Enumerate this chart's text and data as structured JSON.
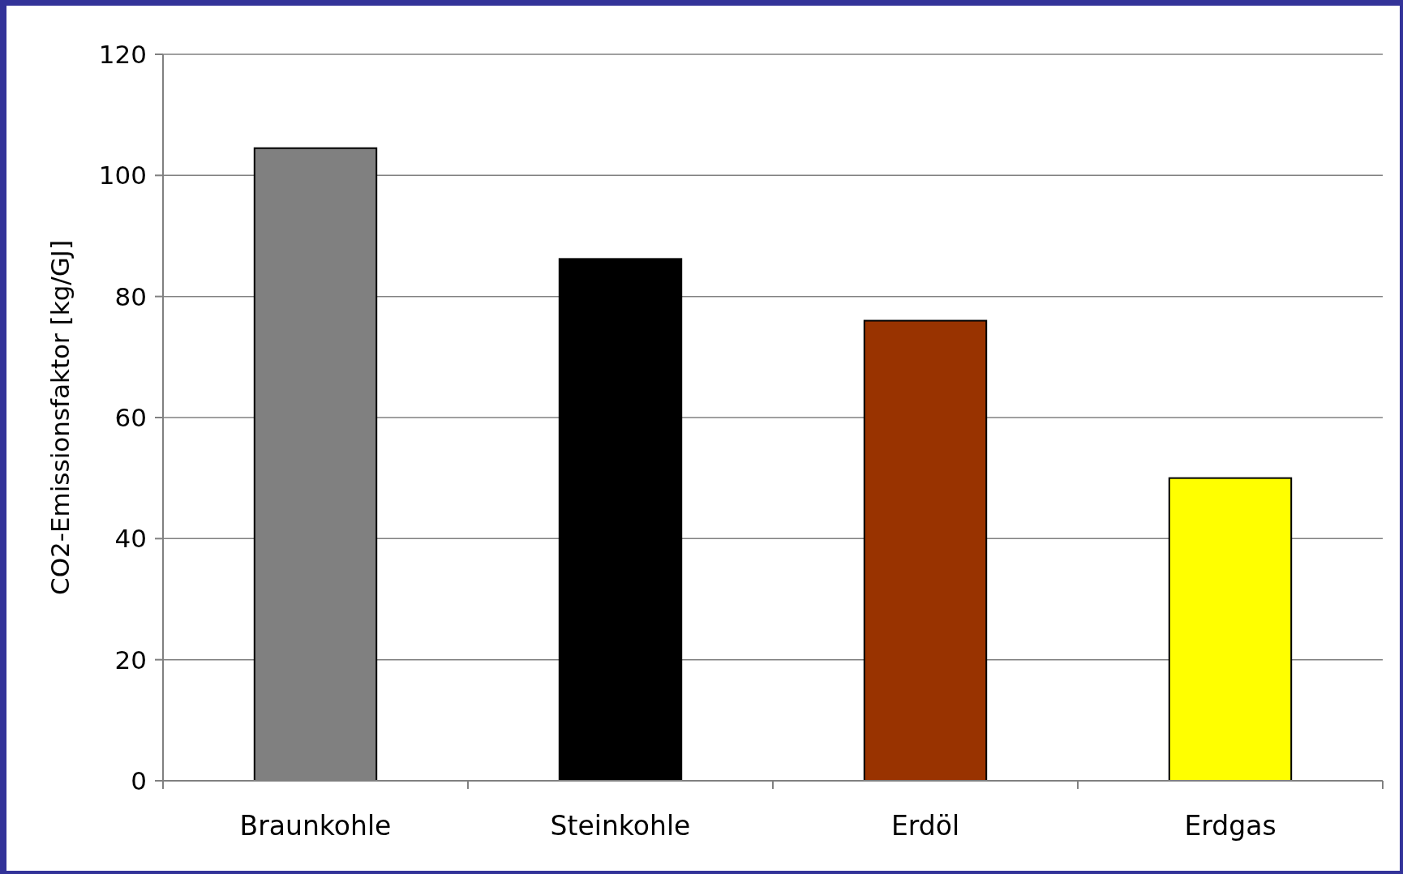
{
  "chart_data": {
    "type": "bar",
    "ylabel": "CO2-Emissionsfaktor [kg/GJ]",
    "categories": [
      "Braunkohle",
      "Steinkohle",
      "Erdöl",
      "Erdgas"
    ],
    "values": [
      104.5,
      86.2,
      76,
      50
    ],
    "colors": [
      "#808080",
      "#000000",
      "#993300",
      "#ffff00"
    ],
    "ylim": [
      0,
      120
    ],
    "yticks": [
      0,
      20,
      40,
      60,
      80,
      100,
      120
    ],
    "grid": "y"
  }
}
